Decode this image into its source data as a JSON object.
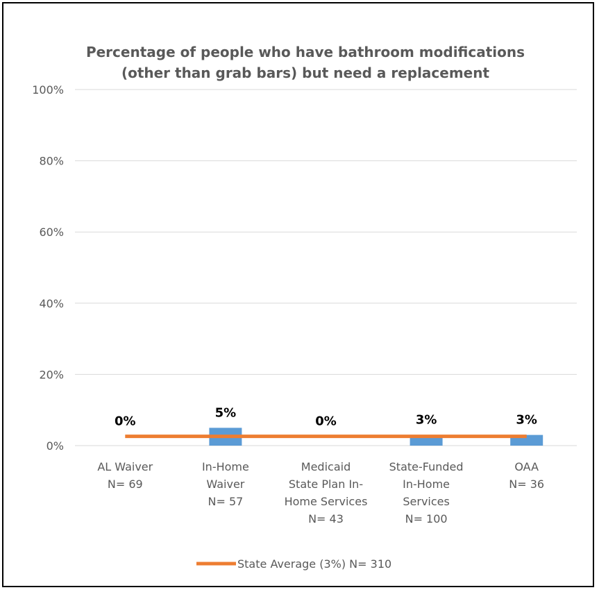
{
  "chart_data": {
    "type": "bar",
    "title_lines": [
      "Percentage of people who have bathroom modifications",
      "(other than grab bars) but need a replacement"
    ],
    "categories": [
      [
        "AL Waiver",
        "N= 69"
      ],
      [
        "In-Home",
        "Waiver",
        "N= 57"
      ],
      [
        "Medicaid",
        "State Plan In-",
        "Home Services",
        "N= 43"
      ],
      [
        "State-Funded",
        "In-Home",
        "Services",
        "N= 100"
      ],
      [
        "OAA",
        "N= 36"
      ]
    ],
    "values": [
      0,
      5,
      0,
      3,
      3
    ],
    "data_labels": [
      "0%",
      "5%",
      "0%",
      "3%",
      "3%"
    ],
    "reference_line": {
      "name": "State Average (3%) N= 310",
      "value": 2.6
    },
    "yticks": [
      "0%",
      "20%",
      "40%",
      "60%",
      "80%",
      "100%"
    ],
    "ylim": [
      0,
      100
    ],
    "grid": true,
    "legend": "bottom",
    "colors": {
      "bar": "#5B9BD5",
      "line": "#ED7D31",
      "grid": "#D9D9D9"
    }
  }
}
